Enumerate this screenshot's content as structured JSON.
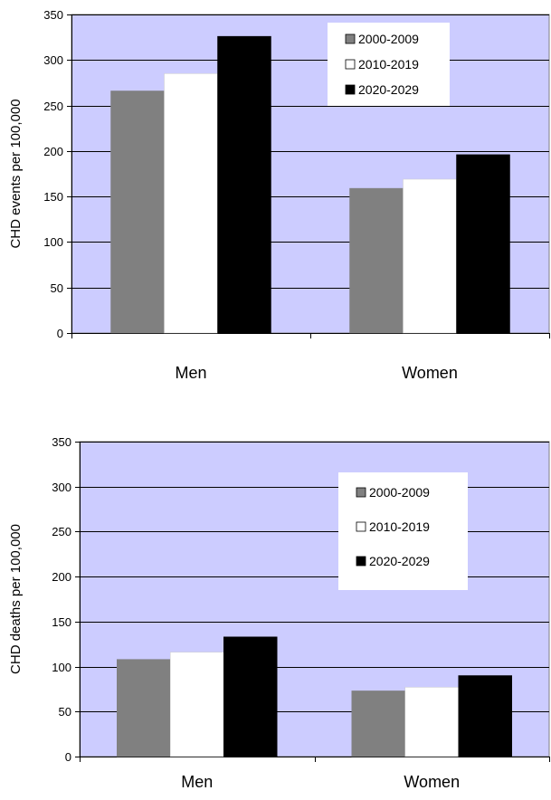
{
  "chart_data": [
    {
      "type": "bar",
      "categories": [
        "Men",
        "Women"
      ],
      "series": [
        {
          "name": "2000-2009",
          "values": [
            266,
            159
          ],
          "color": "#808080"
        },
        {
          "name": "2010-2019",
          "values": [
            285,
            169
          ],
          "color": "#ffffff"
        },
        {
          "name": "2020-2029",
          "values": [
            326,
            196
          ],
          "color": "#000000"
        }
      ],
      "ylabel": "CHD  events per 100,000",
      "ylim": [
        0,
        350
      ],
      "yticks": [
        0,
        50,
        100,
        150,
        200,
        250,
        300,
        350
      ],
      "grid": true,
      "legend": "top-right",
      "plot_bg": "#ccccff"
    },
    {
      "type": "bar",
      "categories": [
        "Men",
        "Women"
      ],
      "series": [
        {
          "name": "2000-2009",
          "values": [
            108,
            73
          ],
          "color": "#808080"
        },
        {
          "name": "2010-2019",
          "values": [
            116,
            77
          ],
          "color": "#ffffff"
        },
        {
          "name": "2020-2029",
          "values": [
            133,
            90
          ],
          "color": "#000000"
        }
      ],
      "ylabel": "CHD  deaths per 100,000",
      "ylim": [
        0,
        350
      ],
      "yticks": [
        0,
        50,
        100,
        150,
        200,
        250,
        300,
        350
      ],
      "grid": true,
      "legend": "top-right",
      "plot_bg": "#ccccff"
    }
  ]
}
